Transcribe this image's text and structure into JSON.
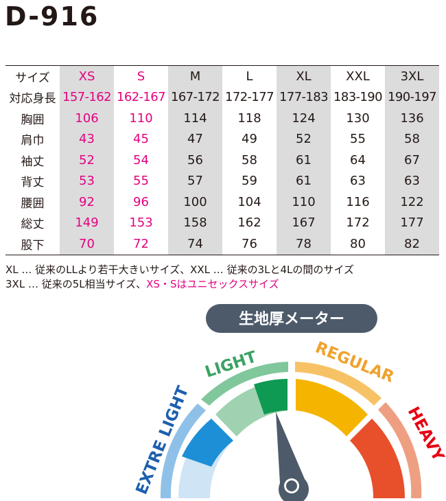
{
  "product": {
    "code": "D-916"
  },
  "size_table": {
    "columns": [
      "サイズ",
      "XS",
      "S",
      "M",
      "L",
      "XL",
      "XXL",
      "3XL"
    ],
    "rows": [
      {
        "label": "対応身長",
        "values": [
          "157-162",
          "162-167",
          "167-172",
          "172-177",
          "177-183",
          "183-190",
          "190-197"
        ]
      },
      {
        "label": "胸囲",
        "values": [
          "106",
          "110",
          "114",
          "118",
          "124",
          "130",
          "136"
        ]
      },
      {
        "label": "肩巾",
        "values": [
          "43",
          "45",
          "47",
          "49",
          "52",
          "55",
          "58"
        ]
      },
      {
        "label": "袖丈",
        "values": [
          "52",
          "54",
          "56",
          "58",
          "61",
          "64",
          "67"
        ]
      },
      {
        "label": "背丈",
        "values": [
          "53",
          "55",
          "57",
          "59",
          "61",
          "63",
          "63"
        ]
      },
      {
        "label": "腰囲",
        "values": [
          "92",
          "96",
          "100",
          "104",
          "110",
          "116",
          "122"
        ]
      },
      {
        "label": "総丈",
        "values": [
          "149",
          "153",
          "158",
          "162",
          "167",
          "172",
          "177"
        ]
      },
      {
        "label": "股下",
        "values": [
          "70",
          "72",
          "74",
          "76",
          "78",
          "80",
          "82"
        ]
      }
    ]
  },
  "notes": {
    "line1": "XL … 従来のLLより若干大きいサイズ、XXL … 従来の3Lと4Lの間のサイズ",
    "line2_plain": "3XL … 従来の5L相当サイズ、",
    "line2_highlight": "XS・Sはユニセックスサイズ"
  },
  "meter": {
    "title": "生地厚メーター",
    "labels": {
      "extra_light": "EXTRE LIGHT",
      "light": "LIGHT",
      "regular": "REGULAR",
      "heavy": "HEAVY"
    },
    "selected": "LIGHT",
    "colors": {
      "extra_light": "#1c8fd6",
      "extra_light_outer": "#8fc1e8",
      "light": "#0e9a53",
      "light_outer": "#80c79c",
      "regular": "#f5b400",
      "regular_outer": "#f7c266",
      "heavy": "#e84f2b",
      "heavy_outer": "#ee9f82",
      "needle": "#4d5a69",
      "badge": "#4d5a69",
      "label_blue": "#1d5fae",
      "label_green": "#3ba264",
      "label_orange": "#f0a22e",
      "label_red": "#e60012"
    }
  }
}
